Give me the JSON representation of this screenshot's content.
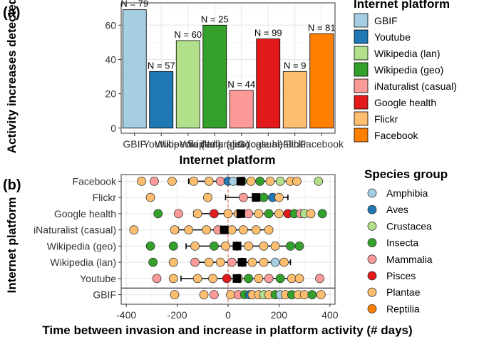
{
  "panels": {
    "a_label": "(a)",
    "b_label": "(b)"
  },
  "chart_data": [
    {
      "type": "bar",
      "panel": "a",
      "ylabel": "Activity increases detected (%)",
      "xlabel": "Internet platform",
      "ylim": [
        -3,
        73
      ],
      "yticks": [
        0,
        20,
        40,
        60
      ],
      "grid": true,
      "categories": [
        "GBIF",
        "Youtube",
        "Wikipedia (lan)",
        "Wikipedia (geo)",
        "iNaturalist (casual)",
        "Google health",
        "Flickr",
        "Facebook"
      ],
      "values": [
        69,
        33,
        51,
        60,
        22,
        52,
        33,
        55
      ],
      "data_labels": [
        "N = 79",
        "N = 57",
        "N = 60",
        "N = 25",
        "N = 44",
        "N = 99",
        "N = 9",
        "N = 81"
      ],
      "colors": [
        "#A6CEE3",
        "#1F78B4",
        "#B2DF8A",
        "#33A02C",
        "#FB9A99",
        "#E31A1C",
        "#FDBF6F",
        "#FF7F00"
      ],
      "legend": {
        "title": "Internet platform",
        "position": "right",
        "entries": [
          "GBIF",
          "Youtube",
          "Wikipedia (lan)",
          "Wikipedia (geo)",
          "iNaturalist (casual)",
          "Google health",
          "Flickr",
          "Facebook"
        ]
      }
    },
    {
      "type": "scatter",
      "panel": "b",
      "xlabel": "Time between invasion and increase in platform activity (# days)",
      "ylabel": "Internet platform",
      "xlim": [
        -420,
        420
      ],
      "xticks": [
        -400,
        -200,
        0,
        200,
        400
      ],
      "rows": [
        "GBIF",
        "Youtube",
        "Wikipedia (lan)",
        "Wikipedia (geo)",
        "iNaturalist (casual)",
        "Google health",
        "Flickr",
        "Facebook"
      ],
      "summary": [
        {
          "row": "Youtube",
          "mean": 35,
          "low": -185,
          "high": 255
        },
        {
          "row": "Wikipedia (lan)",
          "mean": 55,
          "low": -135,
          "high": 245
        },
        {
          "row": "Wikipedia (geo)",
          "mean": 35,
          "low": -165,
          "high": 235
        },
        {
          "row": "iNaturalist (casual)",
          "mean": -15,
          "low": -195,
          "high": 165
        },
        {
          "row": "Google health",
          "mean": 50,
          "low": -135,
          "high": 235
        },
        {
          "row": "Flickr",
          "mean": 110,
          "low": -10,
          "high": 235
        },
        {
          "row": "Facebook",
          "mean": 50,
          "low": -155,
          "high": 255
        }
      ],
      "points": [
        {
          "row": "GBIF",
          "x": -210,
          "g": "Plantae"
        },
        {
          "row": "GBIF",
          "x": -95,
          "g": "Plantae"
        },
        {
          "row": "GBIF",
          "x": -55,
          "g": "Mammalia"
        },
        {
          "row": "GBIF",
          "x": 10,
          "g": "Plantae"
        },
        {
          "row": "GBIF",
          "x": 40,
          "g": "Mammalia"
        },
        {
          "row": "GBIF",
          "x": 65,
          "g": "Insecta"
        },
        {
          "row": "GBIF",
          "x": 85,
          "g": "Aves"
        },
        {
          "row": "GBIF",
          "x": 95,
          "g": "Plantae"
        },
        {
          "row": "GBIF",
          "x": 120,
          "g": "Plantae"
        },
        {
          "row": "GBIF",
          "x": 140,
          "g": "Crustacea"
        },
        {
          "row": "GBIF",
          "x": 160,
          "g": "Plantae"
        },
        {
          "row": "GBIF",
          "x": 185,
          "g": "Insecta"
        },
        {
          "row": "GBIF",
          "x": 205,
          "g": "Amphibia"
        },
        {
          "row": "GBIF",
          "x": 225,
          "g": "Plantae"
        },
        {
          "row": "GBIF",
          "x": 250,
          "g": "Insecta"
        },
        {
          "row": "GBIF",
          "x": 275,
          "g": "Plantae"
        },
        {
          "row": "GBIF",
          "x": 300,
          "g": "Plantae"
        },
        {
          "row": "GBIF",
          "x": 330,
          "g": "Insecta"
        },
        {
          "row": "GBIF",
          "x": 365,
          "g": "Plantae"
        },
        {
          "row": "Youtube",
          "x": -280,
          "g": "Mammalia"
        },
        {
          "row": "Youtube",
          "x": -215,
          "g": "Plantae"
        },
        {
          "row": "Youtube",
          "x": -120,
          "g": "Plantae"
        },
        {
          "row": "Youtube",
          "x": -60,
          "g": "Plantae"
        },
        {
          "row": "Youtube",
          "x": -5,
          "g": "Pisces"
        },
        {
          "row": "Youtube",
          "x": 40,
          "g": "Plantae"
        },
        {
          "row": "Youtube",
          "x": 80,
          "g": "Insecta"
        },
        {
          "row": "Youtube",
          "x": 120,
          "g": "Plantae"
        },
        {
          "row": "Youtube",
          "x": 160,
          "g": "Mammalia"
        },
        {
          "row": "Youtube",
          "x": 205,
          "g": "Insecta"
        },
        {
          "row": "Youtube",
          "x": 250,
          "g": "Plantae"
        },
        {
          "row": "Youtube",
          "x": 280,
          "g": "Plantae"
        },
        {
          "row": "Youtube",
          "x": 360,
          "g": "Mammalia"
        },
        {
          "row": "Wikipedia (lan)",
          "x": -295,
          "g": "Insecta"
        },
        {
          "row": "Wikipedia (lan)",
          "x": -215,
          "g": "Plantae"
        },
        {
          "row": "Wikipedia (lan)",
          "x": -130,
          "g": "Mammalia"
        },
        {
          "row": "Wikipedia (lan)",
          "x": -75,
          "g": "Plantae"
        },
        {
          "row": "Wikipedia (lan)",
          "x": -30,
          "g": "Plantae"
        },
        {
          "row": "Wikipedia (lan)",
          "x": 15,
          "g": "Mammalia"
        },
        {
          "row": "Wikipedia (lan)",
          "x": 55,
          "g": "Insecta"
        },
        {
          "row": "Wikipedia (lan)",
          "x": 95,
          "g": "Plantae"
        },
        {
          "row": "Wikipedia (lan)",
          "x": 140,
          "g": "Plantae"
        },
        {
          "row": "Wikipedia (lan)",
          "x": 185,
          "g": "Amphibia"
        },
        {
          "row": "Wikipedia (lan)",
          "x": 220,
          "g": "Plantae"
        },
        {
          "row": "Wikipedia (geo)",
          "x": -305,
          "g": "Insecta"
        },
        {
          "row": "Wikipedia (geo)",
          "x": -215,
          "g": "Insecta"
        },
        {
          "row": "Wikipedia (geo)",
          "x": -130,
          "g": "Plantae"
        },
        {
          "row": "Wikipedia (geo)",
          "x": -55,
          "g": "Insecta"
        },
        {
          "row": "Wikipedia (geo)",
          "x": -10,
          "g": "Plantae"
        },
        {
          "row": "Wikipedia (geo)",
          "x": 35,
          "g": "Crustacea"
        },
        {
          "row": "Wikipedia (geo)",
          "x": 80,
          "g": "Plantae"
        },
        {
          "row": "Wikipedia (geo)",
          "x": 140,
          "g": "Plantae"
        },
        {
          "row": "Wikipedia (geo)",
          "x": 185,
          "g": "Plantae"
        },
        {
          "row": "Wikipedia (geo)",
          "x": 245,
          "g": "Insecta"
        },
        {
          "row": "Wikipedia (geo)",
          "x": 280,
          "g": "Insecta"
        },
        {
          "row": "iNaturalist (casual)",
          "x": -370,
          "g": "Plantae"
        },
        {
          "row": "iNaturalist (casual)",
          "x": -210,
          "g": "Plantae"
        },
        {
          "row": "iNaturalist (casual)",
          "x": -155,
          "g": "Plantae"
        },
        {
          "row": "iNaturalist (casual)",
          "x": -85,
          "g": "Plantae"
        },
        {
          "row": "iNaturalist (casual)",
          "x": -40,
          "g": "Mammalia"
        },
        {
          "row": "iNaturalist (casual)",
          "x": 15,
          "g": "Plantae"
        },
        {
          "row": "iNaturalist (casual)",
          "x": 60,
          "g": "Plantae"
        },
        {
          "row": "iNaturalist (casual)",
          "x": 110,
          "g": "Plantae"
        },
        {
          "row": "iNaturalist (casual)",
          "x": 160,
          "g": "Plantae"
        },
        {
          "row": "Google health",
          "x": -275,
          "g": "Insecta"
        },
        {
          "row": "Google health",
          "x": -195,
          "g": "Mammalia"
        },
        {
          "row": "Google health",
          "x": -120,
          "g": "Plantae"
        },
        {
          "row": "Google health",
          "x": -55,
          "g": "Pisces"
        },
        {
          "row": "Google health",
          "x": 0,
          "g": "Plantae"
        },
        {
          "row": "Google health",
          "x": 40,
          "g": "Plantae"
        },
        {
          "row": "Google health",
          "x": 80,
          "g": "Mammalia"
        },
        {
          "row": "Google health",
          "x": 120,
          "g": "Plantae"
        },
        {
          "row": "Google health",
          "x": 160,
          "g": "Insecta"
        },
        {
          "row": "Google health",
          "x": 200,
          "g": "Plantae"
        },
        {
          "row": "Google health",
          "x": 235,
          "g": "Pisces"
        },
        {
          "row": "Google health",
          "x": 260,
          "g": "Insecta"
        },
        {
          "row": "Google health",
          "x": 285,
          "g": "Mammalia"
        },
        {
          "row": "Google health",
          "x": 300,
          "g": "Crustacea"
        },
        {
          "row": "Google health",
          "x": 325,
          "g": "Plantae"
        },
        {
          "row": "Google health",
          "x": 370,
          "g": "Insecta"
        },
        {
          "row": "Flickr",
          "x": -305,
          "g": "Plantae"
        },
        {
          "row": "Flickr",
          "x": -80,
          "g": "Plantae"
        },
        {
          "row": "Flickr",
          "x": 60,
          "g": "Mammalia"
        },
        {
          "row": "Flickr",
          "x": 140,
          "g": "Insecta"
        },
        {
          "row": "Flickr",
          "x": 175,
          "g": "Aves"
        },
        {
          "row": "Flickr",
          "x": 200,
          "g": "Plantae"
        },
        {
          "row": "Facebook",
          "x": -340,
          "g": "Plantae"
        },
        {
          "row": "Facebook",
          "x": -290,
          "g": "Mammalia"
        },
        {
          "row": "Facebook",
          "x": -220,
          "g": "Plantae"
        },
        {
          "row": "Facebook",
          "x": -135,
          "g": "Plantae"
        },
        {
          "row": "Facebook",
          "x": -75,
          "g": "Plantae"
        },
        {
          "row": "Facebook",
          "x": -30,
          "g": "Mammalia"
        },
        {
          "row": "Facebook",
          "x": 0,
          "g": "Aves"
        },
        {
          "row": "Facebook",
          "x": 20,
          "g": "Amphibia"
        },
        {
          "row": "Facebook",
          "x": 55,
          "g": "Insecta"
        },
        {
          "row": "Facebook",
          "x": 90,
          "g": "Plantae"
        },
        {
          "row": "Facebook",
          "x": 125,
          "g": "Insecta"
        },
        {
          "row": "Facebook",
          "x": 165,
          "g": "Plantae"
        },
        {
          "row": "Facebook",
          "x": 205,
          "g": "Crustacea"
        },
        {
          "row": "Facebook",
          "x": 245,
          "g": "Plantae"
        },
        {
          "row": "Facebook",
          "x": 270,
          "g": "Plantae"
        },
        {
          "row": "Facebook",
          "x": 355,
          "g": "Crustacea"
        }
      ],
      "legend": {
        "title": "Species group",
        "position": "right",
        "entries": [
          "Amphibia",
          "Aves",
          "Crustacea",
          "Insecta",
          "Mammalia",
          "Pisces",
          "Plantae",
          "Reptilia"
        ],
        "colors": [
          "#A6CEE3",
          "#1F78B4",
          "#B2DF8A",
          "#33A02C",
          "#FB9A99",
          "#E31A1C",
          "#FDBF6F",
          "#FF7F00"
        ]
      }
    }
  ]
}
